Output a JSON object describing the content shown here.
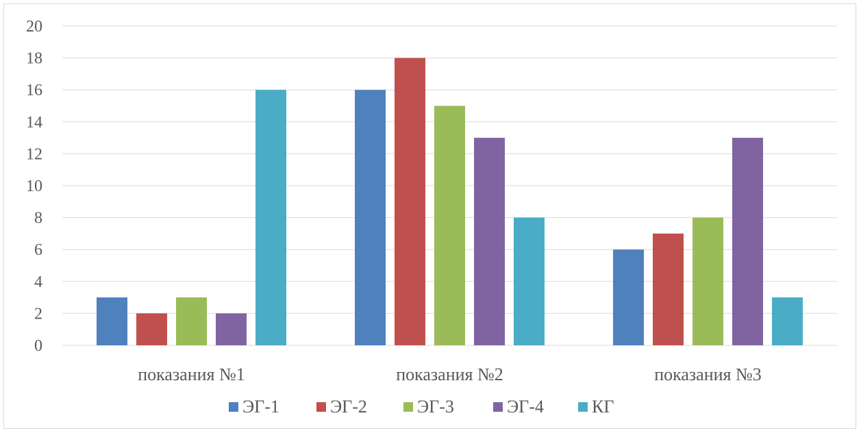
{
  "chart_data": {
    "type": "bar",
    "categories": [
      "показания №1",
      "показания №2",
      "показания №3"
    ],
    "series": [
      {
        "name": "ЭГ-1",
        "color": "#4F81BD",
        "values": [
          3,
          16,
          6
        ]
      },
      {
        "name": "ЭГ-2",
        "color": "#C0504D",
        "values": [
          2,
          18,
          7
        ]
      },
      {
        "name": "ЭГ-3",
        "color": "#9BBB59",
        "values": [
          3,
          15,
          8
        ]
      },
      {
        "name": "ЭГ-4",
        "color": "#8064A2",
        "values": [
          2,
          13,
          13
        ]
      },
      {
        "name": "КГ",
        "color": "#4BACC6",
        "values": [
          16,
          8,
          3
        ]
      }
    ],
    "yticks": [
      "0",
      "2",
      "4",
      "6",
      "8",
      "10",
      "12",
      "14",
      "16",
      "18",
      "20"
    ],
    "ylim": [
      0,
      20
    ],
    "grid": true,
    "legend_position": "bottom"
  }
}
